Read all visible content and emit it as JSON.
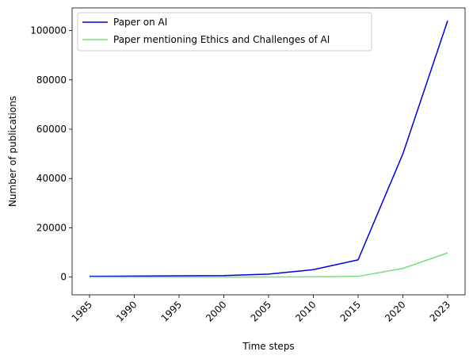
{
  "chart_data": {
    "type": "line",
    "x": [
      "1985",
      "1990",
      "1995",
      "2000",
      "2005",
      "2010",
      "2015",
      "2020",
      "2023"
    ],
    "series": [
      {
        "name": "Paper on AI",
        "color": "#0000dd",
        "values": [
          300,
          400,
          500,
          600,
          1200,
          3000,
          7000,
          50000,
          104000
        ]
      },
      {
        "name": "Paper mentioning Ethics and Challenges of AI",
        "color": "#77dd77",
        "values": [
          0,
          0,
          0,
          0,
          50,
          100,
          300,
          3500,
          9800
        ]
      }
    ],
    "xlabel": "Time steps",
    "ylabel": "Number of publications",
    "ylim": [
      -7200,
      109200
    ],
    "yticks": [
      0,
      20000,
      40000,
      60000,
      80000,
      100000
    ],
    "legend": "top-left",
    "grid": false
  }
}
